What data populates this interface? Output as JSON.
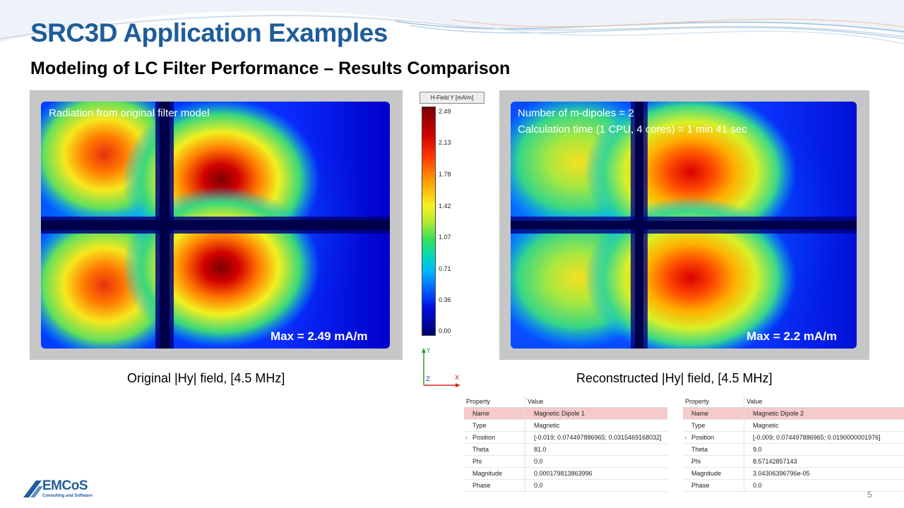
{
  "slide": {
    "title": "SRC3D Application Examples",
    "subtitle": "Modeling of LC Filter Performance – Results Comparison",
    "page_number": "5"
  },
  "left_plot": {
    "overlay": "Radiation from original filter model",
    "max_label": "Max = 2.49 mA/m",
    "caption": "Original |Hy| field, [4.5 MHz]"
  },
  "right_plot": {
    "overlay_line1": "Number of m-dipoles = 2",
    "overlay_line2": "Calculation time (1 CPU, 4 cores) = 1 min 41 sec",
    "max_label": "Max = 2.2 mA/m",
    "caption": "Reconstructed |Hy| field, [4.5 MHz]"
  },
  "colorbar": {
    "title": "H-Field Y [mA/m]",
    "ticks": [
      "2.49",
      "2.13",
      "1.78",
      "1.42",
      "1.07",
      "0.71",
      "0.36",
      "0.00"
    ],
    "max": 2.49,
    "min": 0.0
  },
  "axes_triad": {
    "y": "Y",
    "z": "Z",
    "x": "X"
  },
  "table1": {
    "header": [
      "Property",
      "Value"
    ],
    "rows": [
      {
        "prop": "Name",
        "val": "Magnetic Dipole 1",
        "selected": true
      },
      {
        "prop": "Type",
        "val": "Magnetic"
      },
      {
        "prop": "Position",
        "val": "[-0.019; 0.074497886965; 0.0315469168032]",
        "expandable": true
      },
      {
        "prop": "Theta",
        "val": "81.0"
      },
      {
        "prop": "Phi",
        "val": "0.0"
      },
      {
        "prop": "Magnitude",
        "val": "0.000179813863996"
      },
      {
        "prop": "Phase",
        "val": "0.0"
      }
    ]
  },
  "table2": {
    "header": [
      "Property",
      "Value"
    ],
    "rows": [
      {
        "prop": "Name",
        "val": "Magnetic Dipole 2",
        "selected": true
      },
      {
        "prop": "Type",
        "val": "Magnetic"
      },
      {
        "prop": "Position",
        "val": "[-0.009; 0.074497886965; 0.0190000001976]",
        "expandable": true
      },
      {
        "prop": "Theta",
        "val": "9.0"
      },
      {
        "prop": "Phi",
        "val": "8.57142857143"
      },
      {
        "prop": "Magnitude",
        "val": "3.04306396796e-05"
      },
      {
        "prop": "Phase",
        "val": "0.0"
      }
    ]
  },
  "logo": {
    "name": "EMCoS",
    "tagline": "Consulting and Software"
  },
  "colors": {
    "title": "#1f5c99",
    "field_low": "#00007f",
    "field_high": "#7f0000",
    "selected_row": "#f6caca"
  }
}
